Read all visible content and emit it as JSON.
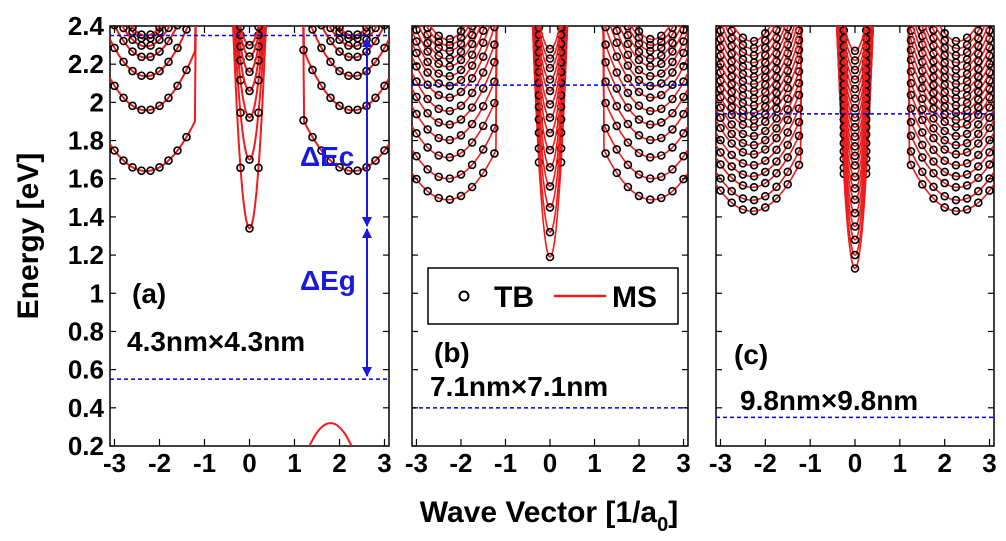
{
  "figure": {
    "ylabel": "Energy [eV]",
    "xlabel_main": "Wave Vector [1/a",
    "xlabel_sub": "0",
    "xlabel_close": "]"
  },
  "legend": {
    "tb_label": "TB",
    "ms_label": "MS"
  },
  "colors": {
    "ms_line": "#ee1c1c",
    "tb_marker": "#000000",
    "guide": "#0000cc",
    "annotation": "#1a1adf"
  },
  "annotations": {
    "delta_ec": "ΔEc",
    "delta_eg": "ΔEg"
  },
  "chart_data": [
    {
      "type": "line",
      "panel_label": "(a)",
      "size_label": "4.3nm×4.3nm",
      "x_ticks": [
        "-3",
        "-2",
        "-1",
        "0",
        "1",
        "2",
        "3"
      ],
      "y_ticks": [
        "0.2",
        "0.4",
        "0.6",
        "0.8",
        "1",
        "1.2",
        "1.4",
        "1.6",
        "1.8",
        "2",
        "2.2",
        "2.4"
      ],
      "xlim": [
        -3.1,
        3.1
      ],
      "ylim": [
        0.2,
        2.4
      ],
      "conduction_band_minima_eV": [
        1.34,
        1.7,
        1.92,
        2.06,
        2.16,
        2.24,
        2.3
      ],
      "valence_band_max_eV": 0.32,
      "guide_lines_eV": [
        2.35,
        0.55
      ],
      "delta_Ec_eV": [
        2.35,
        1.34
      ],
      "delta_Eg_eV": [
        1.34,
        0.55
      ],
      "series": [
        {
          "name": "TB",
          "style": "markers"
        },
        {
          "name": "MS",
          "style": "line"
        }
      ]
    },
    {
      "type": "line",
      "panel_label": "(b)",
      "size_label": "7.1nm×7.1nm",
      "x_ticks": [
        "-3",
        "-2",
        "-1",
        "0",
        "1",
        "2",
        "3"
      ],
      "xlim": [
        -3.1,
        3.1
      ],
      "ylim": [
        0.2,
        2.4
      ],
      "conduction_band_minima_eV": [
        1.19,
        1.32,
        1.45,
        1.56,
        1.66,
        1.75,
        1.84,
        1.92,
        1.99,
        2.06,
        2.12,
        2.18,
        2.23,
        2.28
      ],
      "guide_lines_eV": [
        2.09,
        0.4
      ],
      "series": [
        {
          "name": "TB",
          "style": "markers"
        },
        {
          "name": "MS",
          "style": "line"
        }
      ]
    },
    {
      "type": "line",
      "panel_label": "(c)",
      "size_label": "9.8nm×9.8nm",
      "x_ticks": [
        "-3",
        "-2",
        "-1",
        "0",
        "1",
        "2",
        "3"
      ],
      "xlim": [
        -3.1,
        3.1
      ],
      "ylim": [
        0.2,
        2.4
      ],
      "conduction_band_minima_eV": [
        1.13,
        1.2,
        1.28,
        1.35,
        1.42,
        1.49,
        1.55,
        1.61,
        1.67,
        1.72,
        1.77,
        1.82,
        1.87,
        1.92,
        1.97,
        2.02,
        2.07,
        2.12,
        2.17,
        2.22,
        2.27
      ],
      "guide_lines_eV": [
        1.94,
        0.35
      ],
      "series": [
        {
          "name": "TB",
          "style": "markers"
        },
        {
          "name": "MS",
          "style": "line"
        }
      ]
    }
  ]
}
